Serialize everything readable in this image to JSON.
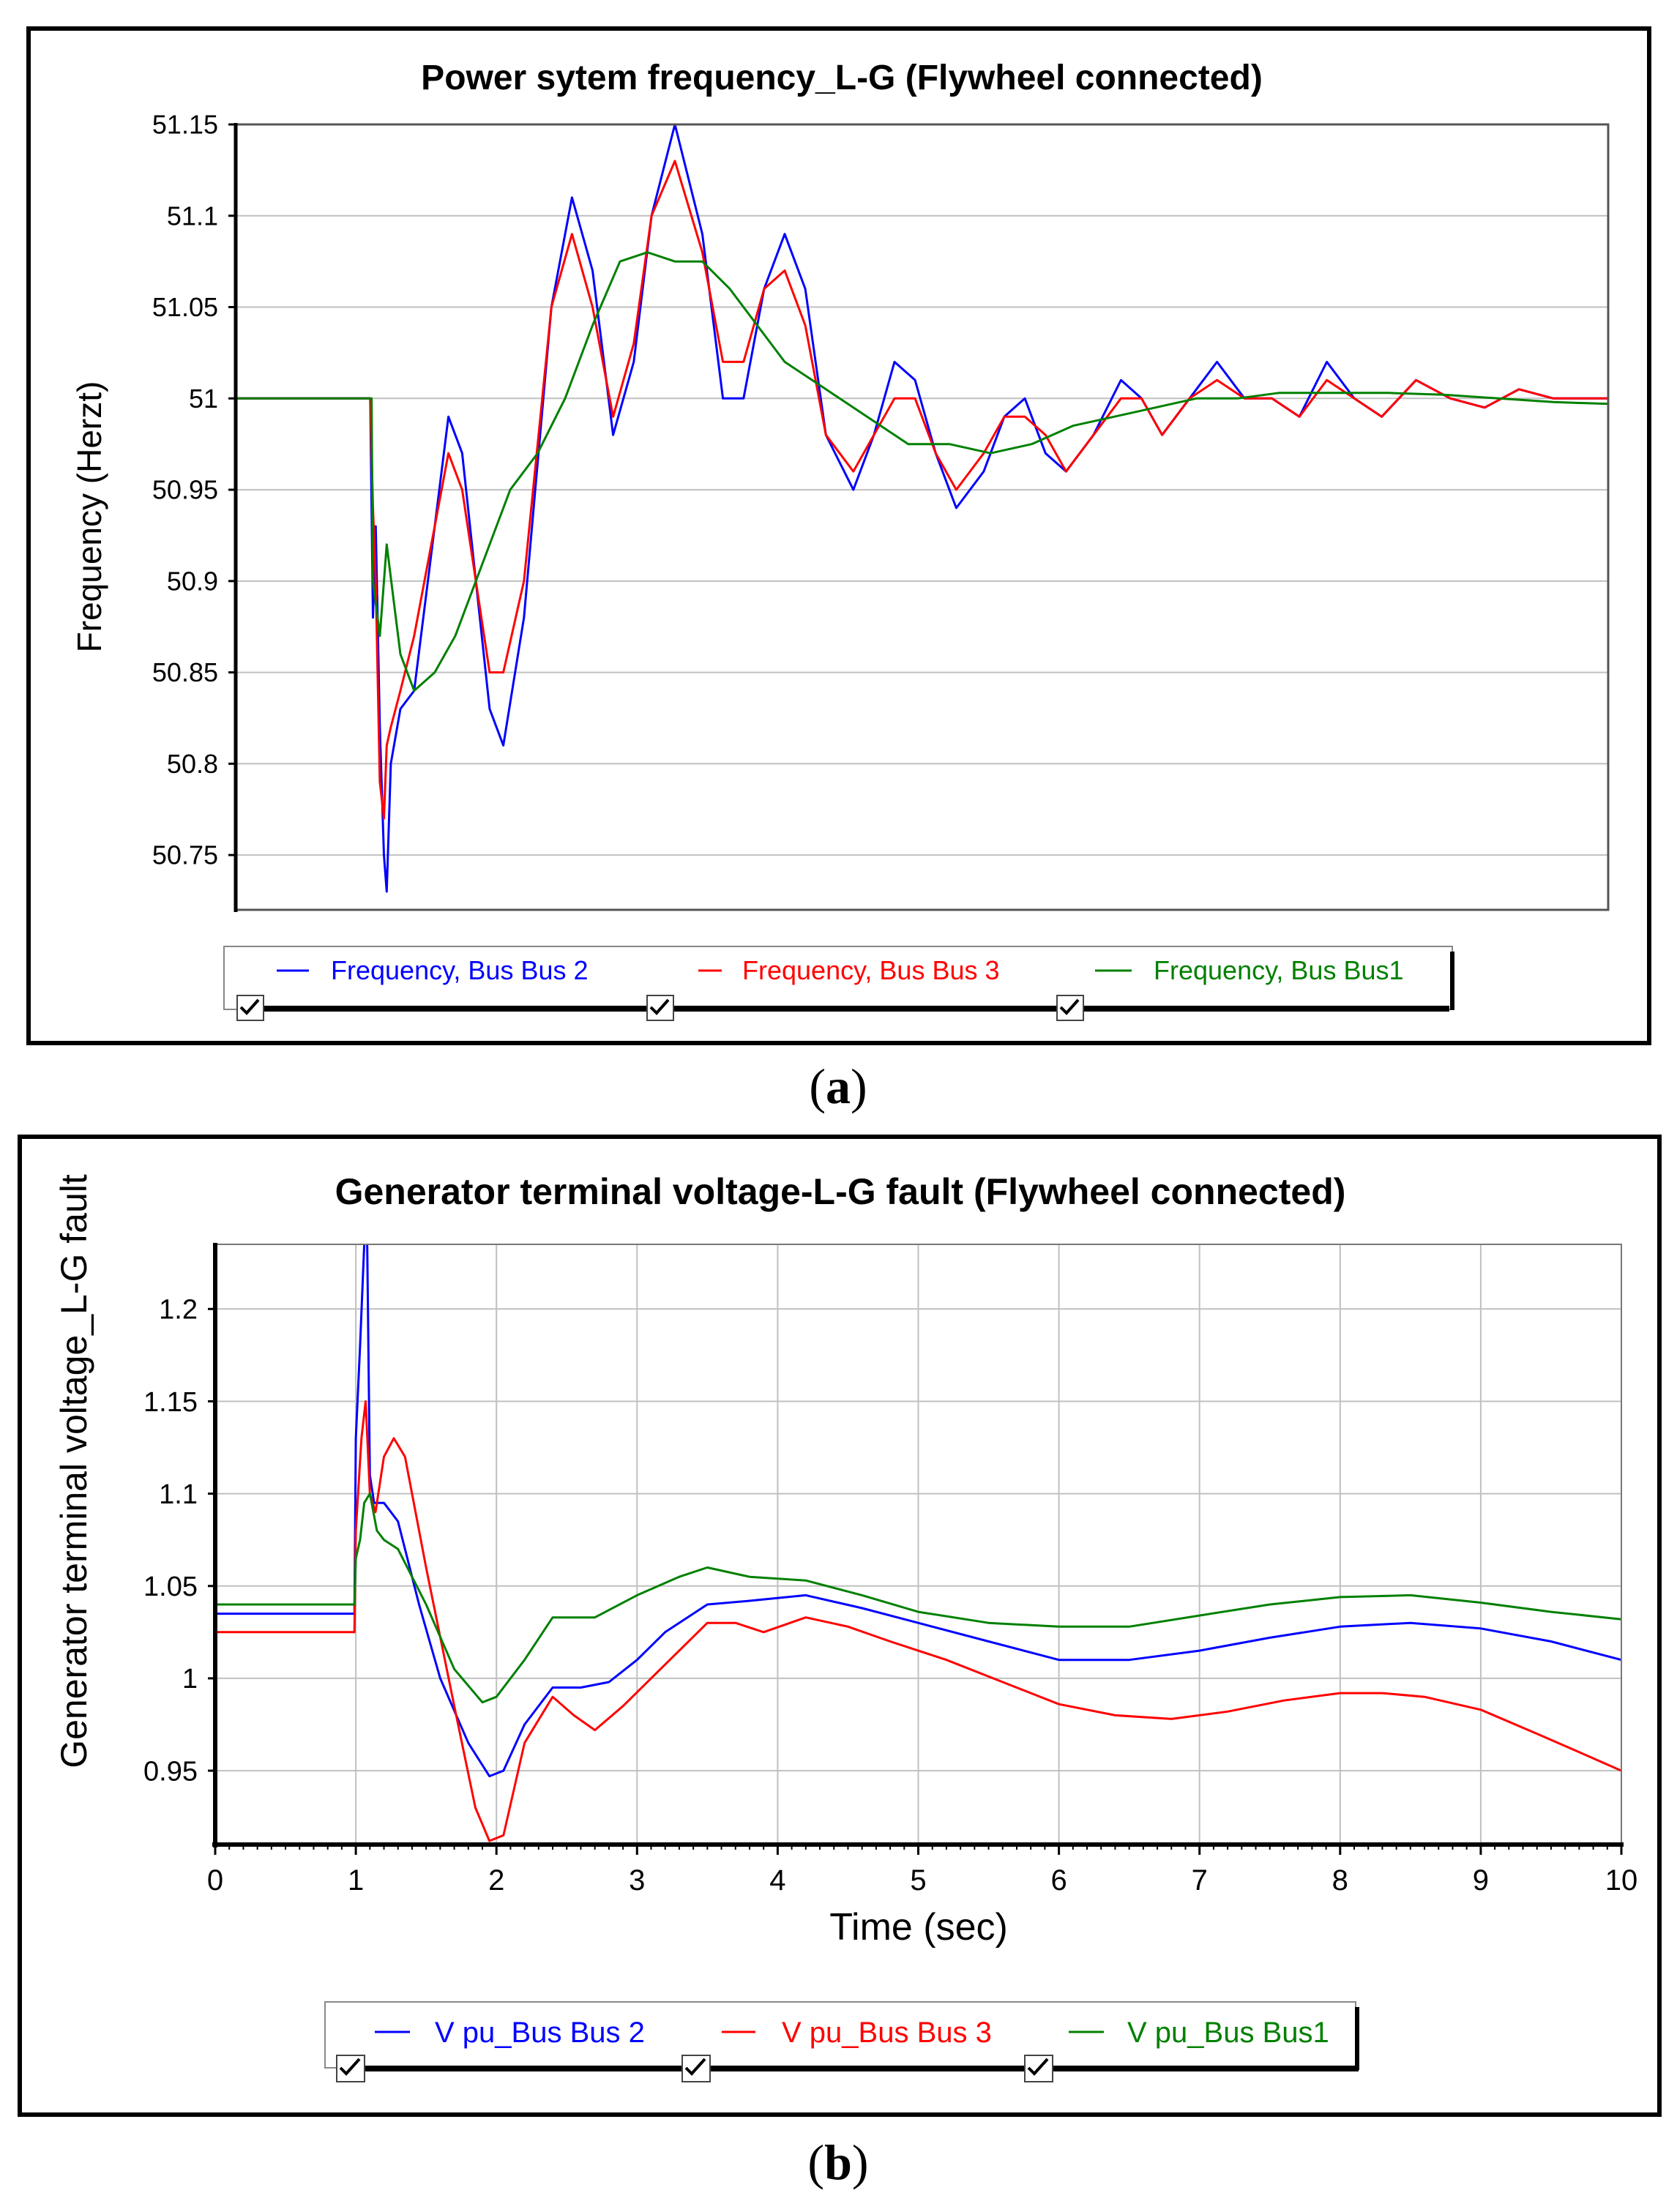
{
  "figure": {
    "panel_a_label": "a",
    "panel_b_label": "b"
  },
  "chart_data": [
    {
      "type": "line",
      "title": "Power sytem frequency_L-G (Flywheel connected)",
      "xlabel": "",
      "ylabel": "Frequency (Herzt)",
      "xlim": [
        0,
        10
      ],
      "ylim": [
        50.72,
        51.15
      ],
      "ytick_labels": [
        "51.15",
        "51.1",
        "51.05",
        "51",
        "50.95",
        "50.9",
        "50.85",
        "50.8",
        "50.75"
      ],
      "yticks": [
        51.15,
        51.1,
        51.05,
        51,
        50.95,
        50.9,
        50.85,
        50.8,
        50.75
      ],
      "grid": true,
      "legend_position": "bottom",
      "series": [
        {
          "name": "Frequency, Bus Bus 2",
          "color": "#0000ff",
          "x": [
            0,
            0.98,
            1.0,
            1.02,
            1.05,
            1.08,
            1.1,
            1.13,
            1.2,
            1.3,
            1.45,
            1.55,
            1.65,
            1.75,
            1.85,
            1.95,
            2.1,
            2.3,
            2.45,
            2.6,
            2.75,
            2.9,
            3.03,
            3.2,
            3.4,
            3.55,
            3.7,
            3.85,
            4.0,
            4.15,
            4.3,
            4.5,
            4.65,
            4.8,
            4.95,
            5.1,
            5.25,
            5.45,
            5.6,
            5.75,
            5.9,
            6.05,
            6.25,
            6.45,
            6.6,
            6.75,
            6.95,
            7.15,
            7.35,
            7.55,
            7.75,
            7.95,
            8.15,
            8.35,
            8.6,
            8.85,
            9.1,
            9.35,
            9.6,
            9.8,
            10
          ],
          "y": [
            51,
            51,
            50.88,
            50.93,
            50.82,
            50.75,
            50.73,
            50.8,
            50.83,
            50.84,
            50.93,
            50.99,
            50.97,
            50.9,
            50.83,
            50.81,
            50.88,
            51.05,
            51.11,
            51.07,
            50.98,
            51.02,
            51.1,
            51.15,
            51.09,
            51.0,
            51.0,
            51.06,
            51.09,
            51.06,
            50.98,
            50.95,
            50.98,
            51.02,
            51.01,
            50.97,
            50.94,
            50.96,
            50.99,
            51.0,
            50.97,
            50.96,
            50.98,
            51.01,
            51.0,
            50.98,
            51.0,
            51.02,
            51.0,
            51.0,
            50.99,
            51.02,
            51.0,
            50.99,
            51.01,
            51.0,
            50.995,
            51.005,
            51.0,
            51.0,
            51.0
          ]
        },
        {
          "name": "Frequency, Bus Bus 3",
          "color": "#ff0000",
          "x": [
            0,
            0.98,
            1.0,
            1.02,
            1.05,
            1.08,
            1.1,
            1.13,
            1.2,
            1.3,
            1.45,
            1.55,
            1.65,
            1.75,
            1.85,
            1.95,
            2.1,
            2.3,
            2.45,
            2.6,
            2.75,
            2.9,
            3.03,
            3.2,
            3.4,
            3.55,
            3.7,
            3.85,
            4.0,
            4.15,
            4.3,
            4.5,
            4.65,
            4.8,
            4.95,
            5.1,
            5.25,
            5.45,
            5.6,
            5.75,
            5.9,
            6.05,
            6.25,
            6.45,
            6.6,
            6.75,
            6.95,
            7.15,
            7.35,
            7.55,
            7.75,
            7.95,
            8.15,
            8.35,
            8.6,
            8.85,
            9.1,
            9.35,
            9.6,
            9.8,
            10
          ],
          "y": [
            51,
            51,
            50.94,
            50.9,
            50.79,
            50.77,
            50.81,
            50.82,
            50.84,
            50.87,
            50.93,
            50.97,
            50.95,
            50.9,
            50.85,
            50.85,
            50.9,
            51.05,
            51.09,
            51.05,
            50.99,
            51.03,
            51.1,
            51.13,
            51.08,
            51.02,
            51.02,
            51.06,
            51.07,
            51.04,
            50.98,
            50.96,
            50.98,
            51.0,
            51.0,
            50.97,
            50.95,
            50.97,
            50.99,
            50.99,
            50.98,
            50.96,
            50.98,
            51.0,
            51.0,
            50.98,
            51.0,
            51.01,
            51.0,
            51.0,
            50.99,
            51.01,
            51.0,
            50.99,
            51.01,
            51.0,
            50.995,
            51.005,
            51.0,
            51.0,
            51.0
          ]
        },
        {
          "name": "Frequency, Bus Bus1",
          "color": "#008000",
          "x": [
            0,
            0.99,
            1.0,
            1.05,
            1.1,
            1.15,
            1.2,
            1.3,
            1.45,
            1.6,
            1.8,
            2.0,
            2.2,
            2.4,
            2.6,
            2.8,
            3.0,
            3.2,
            3.4,
            3.6,
            3.8,
            4.0,
            4.3,
            4.6,
            4.9,
            5.2,
            5.5,
            5.8,
            6.1,
            6.4,
            6.7,
            7.0,
            7.3,
            7.6,
            8.0,
            8.4,
            8.8,
            9.2,
            9.6,
            10
          ],
          "y": [
            51,
            51,
            50.9,
            50.87,
            50.92,
            50.89,
            50.86,
            50.84,
            50.85,
            50.87,
            50.91,
            50.95,
            50.97,
            51.0,
            51.04,
            51.075,
            51.08,
            51.075,
            51.075,
            51.06,
            51.04,
            51.02,
            51.005,
            50.99,
            50.975,
            50.975,
            50.97,
            50.975,
            50.985,
            50.99,
            50.995,
            51.0,
            51.0,
            51.003,
            51.003,
            51.003,
            51.002,
            51.0,
            50.998,
            50.997
          ]
        }
      ]
    },
    {
      "type": "line",
      "title": "Generator terminal voltage-L-G fault (Flywheel connected)",
      "xlabel": "Time (sec)",
      "ylabel": "Generator terminal voltage_L-G fault",
      "xlim": [
        0,
        10
      ],
      "ylim": [
        0.91,
        1.235
      ],
      "xtick_labels": [
        "0",
        "1",
        "2",
        "3",
        "4",
        "5",
        "6",
        "7",
        "8",
        "9",
        "10"
      ],
      "xticks": [
        0,
        1,
        2,
        3,
        4,
        5,
        6,
        7,
        8,
        9,
        10
      ],
      "ytick_labels": [
        "1.2",
        "1.15",
        "1.1",
        "1.05",
        "1",
        "0.95"
      ],
      "yticks": [
        1.2,
        1.15,
        1.1,
        1.05,
        1.0,
        0.95
      ],
      "grid": true,
      "legend_position": "bottom",
      "series": [
        {
          "name": "V pu_Bus Bus 2",
          "color": "#0000ff",
          "x": [
            0,
            0.99,
            1.0,
            1.03,
            1.06,
            1.08,
            1.1,
            1.13,
            1.2,
            1.3,
            1.45,
            1.6,
            1.8,
            1.95,
            2.05,
            2.2,
            2.4,
            2.6,
            2.8,
            3.0,
            3.2,
            3.5,
            3.8,
            4.2,
            4.6,
            5.0,
            5.5,
            6.0,
            6.5,
            7.0,
            7.5,
            8.0,
            8.5,
            9.0,
            9.5,
            10
          ],
          "y": [
            1.035,
            1.035,
            1.13,
            1.18,
            1.235,
            1.24,
            1.11,
            1.095,
            1.095,
            1.085,
            1.04,
            1.0,
            0.965,
            0.947,
            0.95,
            0.975,
            0.995,
            0.995,
            0.998,
            1.01,
            1.025,
            1.04,
            1.042,
            1.045,
            1.038,
            1.03,
            1.02,
            1.01,
            1.01,
            1.015,
            1.022,
            1.028,
            1.03,
            1.027,
            1.02,
            1.01
          ]
        },
        {
          "name": "V pu_Bus Bus 3",
          "color": "#ff0000",
          "x": [
            0,
            0.99,
            1.0,
            1.04,
            1.07,
            1.1,
            1.14,
            1.2,
            1.27,
            1.35,
            1.5,
            1.7,
            1.85,
            1.95,
            2.05,
            2.2,
            2.4,
            2.55,
            2.7,
            2.9,
            3.1,
            3.3,
            3.5,
            3.7,
            3.9,
            4.2,
            4.5,
            4.8,
            5.2,
            5.6,
            6.0,
            6.4,
            6.8,
            7.2,
            7.6,
            8.0,
            8.3,
            8.6,
            9.0,
            9.4,
            9.7,
            10
          ],
          "y": [
            1.025,
            1.025,
            1.08,
            1.13,
            1.15,
            1.1,
            1.09,
            1.12,
            1.13,
            1.12,
            1.06,
            0.985,
            0.93,
            0.912,
            0.915,
            0.965,
            0.99,
            0.98,
            0.972,
            0.985,
            1.0,
            1.015,
            1.03,
            1.03,
            1.025,
            1.033,
            1.028,
            1.02,
            1.01,
            0.998,
            0.986,
            0.98,
            0.978,
            0.982,
            0.988,
            0.992,
            0.992,
            0.99,
            0.983,
            0.97,
            0.96,
            0.95
          ]
        },
        {
          "name": "V pu_Bus Bus1",
          "color": "#008000",
          "x": [
            0,
            0.99,
            1.0,
            1.03,
            1.06,
            1.1,
            1.15,
            1.2,
            1.3,
            1.5,
            1.7,
            1.9,
            2.0,
            2.2,
            2.4,
            2.7,
            3.0,
            3.3,
            3.5,
            3.8,
            4.2,
            4.6,
            5.0,
            5.5,
            6.0,
            6.5,
            7.0,
            7.5,
            8.0,
            8.5,
            9.0,
            9.5,
            10
          ],
          "y": [
            1.04,
            1.04,
            1.065,
            1.075,
            1.095,
            1.1,
            1.08,
            1.075,
            1.07,
            1.04,
            1.005,
            0.987,
            0.99,
            1.01,
            1.033,
            1.033,
            1.045,
            1.055,
            1.06,
            1.055,
            1.053,
            1.045,
            1.036,
            1.03,
            1.028,
            1.028,
            1.034,
            1.04,
            1.044,
            1.045,
            1.041,
            1.036,
            1.032
          ]
        }
      ]
    }
  ]
}
